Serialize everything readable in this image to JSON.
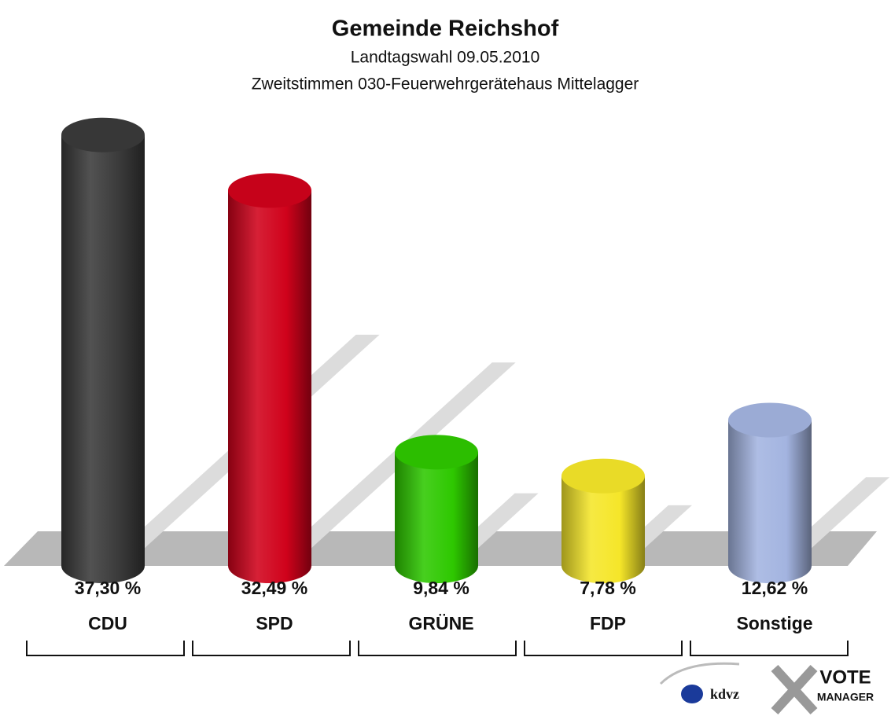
{
  "chart_data": {
    "type": "bar",
    "title": "Gemeinde Reichshof",
    "subtitle": [
      "Landtagswahl 09.05.2010",
      "Zweitstimmen 030-Feuerwehrgerätehaus Mittelagger"
    ],
    "categories": [
      "CDU",
      "SPD",
      "GRÜNE",
      "FDP",
      "Sonstige"
    ],
    "values": [
      37.3,
      32.49,
      9.84,
      7.78,
      12.62
    ],
    "value_labels": [
      "37,30 %",
      "32,49 %",
      "9,84 %",
      "7,78 %",
      "12,62 %"
    ],
    "colors": [
      "#3a3a3a",
      "#d0021b",
      "#2ec800",
      "#f5e629",
      "#a3b4e0"
    ],
    "annotations": [
      "kdvz",
      "VOTE",
      "MANAGER"
    ]
  }
}
